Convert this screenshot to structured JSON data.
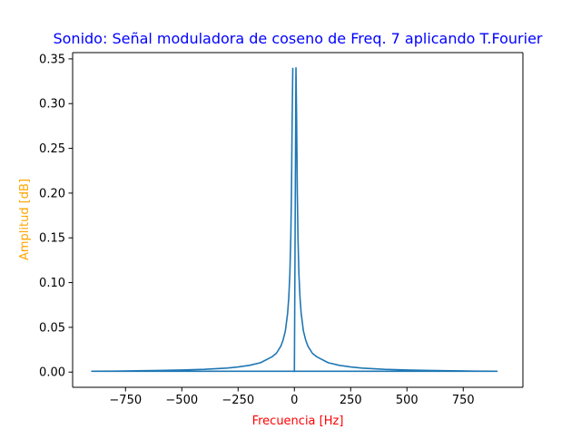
{
  "chart_data": {
    "type": "line",
    "title": "Sonido: Señal moduladora de coseno de Freq. 7 aplicando T.Fourier",
    "xlabel": "Frecuencia [Hz]",
    "ylabel": "Amplitud [dB]",
    "xlim": [
      -985,
      1015
    ],
    "ylim": [
      -0.017,
      0.357
    ],
    "xticks": [
      {
        "value": -750,
        "label": "−750"
      },
      {
        "value": -500,
        "label": "−500"
      },
      {
        "value": -250,
        "label": "−250"
      },
      {
        "value": 0,
        "label": "0"
      },
      {
        "value": 250,
        "label": "250"
      },
      {
        "value": 500,
        "label": "500"
      },
      {
        "value": 750,
        "label": "750"
      }
    ],
    "yticks": [
      {
        "value": 0.0,
        "label": "0.00"
      },
      {
        "value": 0.05,
        "label": "0.05"
      },
      {
        "value": 0.1,
        "label": "0.10"
      },
      {
        "value": 0.15,
        "label": "0.15"
      },
      {
        "value": 0.2,
        "label": "0.20"
      },
      {
        "value": 0.25,
        "label": "0.25"
      },
      {
        "value": 0.3,
        "label": "0.30"
      },
      {
        "value": 0.35,
        "label": "0.35"
      }
    ],
    "grid": false,
    "legend": null,
    "series": [
      {
        "color": "#1f77b4",
        "x": [
          -7,
          -10,
          -13,
          -16,
          -20,
          -25,
          -30,
          -40,
          -50,
          -60,
          -80,
          -100,
          -150,
          -200,
          -250,
          -300,
          -400,
          -500,
          -600,
          -700,
          -800,
          -900,
          900,
          800,
          700,
          600,
          500,
          400,
          300,
          250,
          200,
          150,
          100,
          80,
          60,
          50,
          40,
          30,
          25,
          20,
          16,
          13,
          10,
          7,
          0
        ],
        "y": [
          0.34,
          0.28,
          0.2,
          0.15,
          0.11,
          0.083,
          0.066,
          0.046,
          0.036,
          0.029,
          0.021,
          0.017,
          0.0105,
          0.0075,
          0.0057,
          0.0045,
          0.0031,
          0.0023,
          0.0018,
          0.0014,
          0.0011,
          0.0009,
          0.0009,
          0.0011,
          0.0014,
          0.0018,
          0.0023,
          0.0031,
          0.0045,
          0.0057,
          0.0075,
          0.0105,
          0.017,
          0.021,
          0.029,
          0.036,
          0.046,
          0.066,
          0.083,
          0.11,
          0.15,
          0.2,
          0.28,
          0.34,
          0.0
        ]
      }
    ]
  },
  "colors": {
    "title": "#0000ff",
    "xlabel": "#ff0000",
    "ylabel": "#ffa500",
    "line": "#1f77b4",
    "axes": "#000000"
  }
}
